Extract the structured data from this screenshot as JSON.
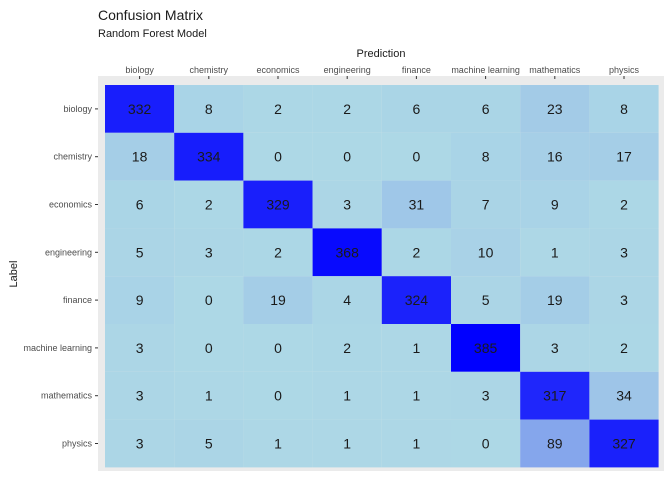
{
  "chart_data": {
    "type": "heatmap",
    "title": "Confusion Matrix",
    "subtitle": "Random Forest Model",
    "xlabel": "Prediction",
    "ylabel": "Label",
    "x_categories": [
      "biology",
      "chemistry",
      "economics",
      "engineering",
      "finance",
      "machine learning",
      "mathematics",
      "physics"
    ],
    "y_categories": [
      "biology",
      "chemistry",
      "economics",
      "engineering",
      "finance",
      "machine learning",
      "mathematics",
      "physics"
    ],
    "values": [
      [
        332,
        8,
        2,
        2,
        6,
        6,
        23,
        8
      ],
      [
        18,
        334,
        0,
        0,
        0,
        8,
        16,
        17
      ],
      [
        6,
        2,
        329,
        3,
        31,
        7,
        9,
        2
      ],
      [
        5,
        3,
        2,
        368,
        2,
        10,
        1,
        3
      ],
      [
        9,
        0,
        19,
        4,
        324,
        5,
        19,
        3
      ],
      [
        3,
        0,
        0,
        2,
        1,
        385,
        3,
        2
      ],
      [
        3,
        1,
        0,
        1,
        1,
        3,
        317,
        34
      ],
      [
        3,
        5,
        1,
        1,
        1,
        0,
        89,
        327
      ]
    ],
    "color_low": "#add8e6",
    "color_high": "#0000ff",
    "panel_background": "#ebebeb",
    "x_axis_position": "top",
    "grid": false
  }
}
